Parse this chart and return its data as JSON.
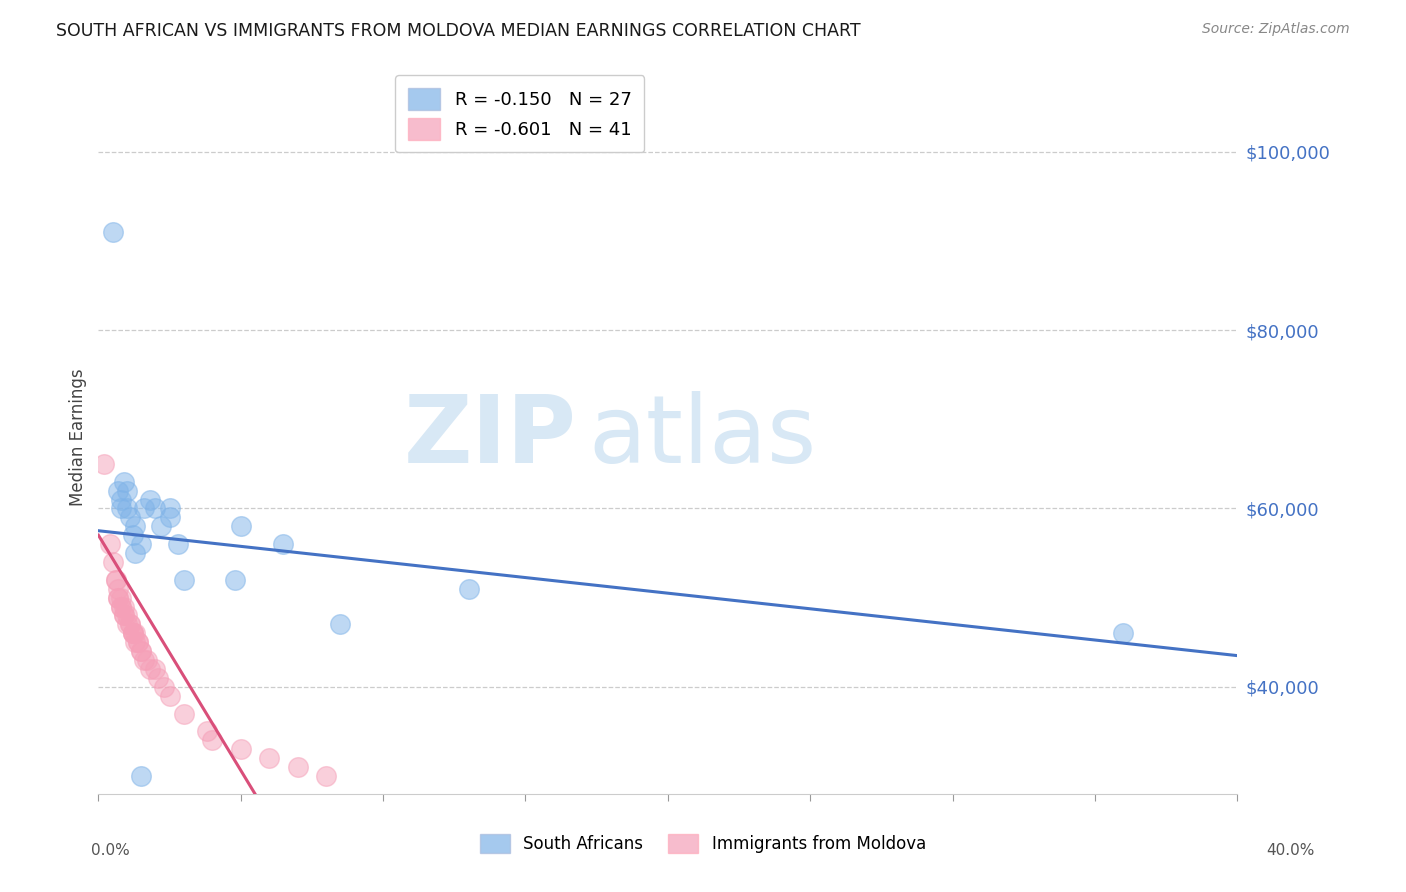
{
  "title": "SOUTH AFRICAN VS IMMIGRANTS FROM MOLDOVA MEDIAN EARNINGS CORRELATION CHART",
  "source": "Source: ZipAtlas.com",
  "ylabel": "Median Earnings",
  "y_ticks": [
    40000,
    60000,
    80000,
    100000
  ],
  "y_tick_labels": [
    "$40,000",
    "$60,000",
    "$80,000",
    "$100,000"
  ],
  "xlim": [
    0.0,
    0.4
  ],
  "ylim": [
    28000,
    108000
  ],
  "title_color": "#222222",
  "source_color": "#888888",
  "watermark_zip": "ZIP",
  "watermark_atlas": "atlas",
  "watermark_color": "#d8e8f5",
  "blue_color": "#7fb3e8",
  "pink_color": "#f5a0b8",
  "blue_line_color": "#4472c4",
  "pink_line_color": "#d94f7a",
  "south_africans_label": "South Africans",
  "moldova_label": "Immigrants from Moldova",
  "R_blue": -0.15,
  "N_blue": 27,
  "R_pink": -0.601,
  "N_pink": 41,
  "blue_x": [
    0.005,
    0.007,
    0.008,
    0.008,
    0.009,
    0.01,
    0.01,
    0.011,
    0.012,
    0.013,
    0.013,
    0.015,
    0.016,
    0.018,
    0.02,
    0.022,
    0.025,
    0.025,
    0.028,
    0.03,
    0.048,
    0.05,
    0.065,
    0.085,
    0.13,
    0.36,
    0.015
  ],
  "blue_y": [
    91000,
    62000,
    61000,
    60000,
    63000,
    60000,
    62000,
    59000,
    57000,
    55000,
    58000,
    56000,
    60000,
    61000,
    60000,
    58000,
    59000,
    60000,
    56000,
    52000,
    52000,
    58000,
    56000,
    47000,
    51000,
    46000,
    30000
  ],
  "pink_x": [
    0.002,
    0.004,
    0.005,
    0.006,
    0.006,
    0.007,
    0.007,
    0.007,
    0.008,
    0.008,
    0.008,
    0.009,
    0.009,
    0.009,
    0.01,
    0.01,
    0.011,
    0.011,
    0.012,
    0.012,
    0.012,
    0.013,
    0.013,
    0.014,
    0.014,
    0.015,
    0.015,
    0.016,
    0.017,
    0.018,
    0.02,
    0.021,
    0.023,
    0.025,
    0.03,
    0.038,
    0.04,
    0.05,
    0.06,
    0.07,
    0.08
  ],
  "pink_y": [
    65000,
    56000,
    54000,
    52000,
    52000,
    51000,
    50000,
    50000,
    50000,
    49000,
    49000,
    49000,
    48000,
    48000,
    48000,
    47000,
    47000,
    47000,
    46000,
    46000,
    46000,
    46000,
    45000,
    45000,
    45000,
    44000,
    44000,
    43000,
    43000,
    42000,
    42000,
    41000,
    40000,
    39000,
    37000,
    35000,
    34000,
    33000,
    32000,
    31000,
    30000
  ],
  "blue_line_x": [
    0.0,
    0.4
  ],
  "blue_line_y": [
    57500,
    43500
  ],
  "pink_line_x": [
    0.0,
    0.055
  ],
  "pink_line_y": [
    57000,
    28000
  ]
}
